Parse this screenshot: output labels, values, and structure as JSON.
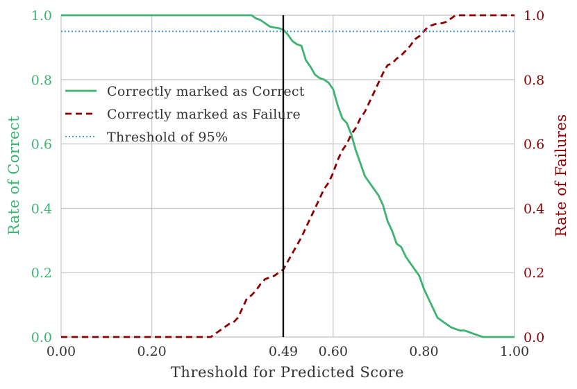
{
  "chart_data": {
    "type": "line",
    "xlabel": "Threshold for Predicted Score",
    "ylabel_left": "Rate of Correct",
    "ylabel_right": "Rate of Failures",
    "xlim": [
      0,
      1
    ],
    "ylim_left": [
      0,
      1
    ],
    "ylim_right": [
      0,
      1
    ],
    "x_ticks": [
      0.0,
      0.2,
      0.49,
      0.6,
      0.8,
      1.0
    ],
    "x_tick_labels": [
      "0.00",
      "0.20",
      "0.49",
      "0.60",
      "0.80",
      "1.00"
    ],
    "y_ticks": [
      0.0,
      0.2,
      0.4,
      0.6,
      0.8,
      1.0
    ],
    "y_left_tick_labels": [
      "0.0",
      "0.2",
      "0.4",
      "0.6",
      "0.8",
      "1.0"
    ],
    "y_right_tick_labels": [
      "0.0",
      "0.2",
      "0.4",
      "0.6",
      "0.8",
      "1.0"
    ],
    "grid": true,
    "legend_position": "upper-left",
    "vertical_line": {
      "x": 0.49,
      "color": "#000000"
    },
    "series": [
      {
        "name": "Correctly marked as Correct",
        "axis": "left",
        "style": "solid",
        "color": "#3cb371",
        "x": [
          0.0,
          0.42,
          0.43,
          0.44,
          0.45,
          0.46,
          0.47,
          0.48,
          0.49,
          0.5,
          0.51,
          0.52,
          0.53,
          0.54,
          0.55,
          0.56,
          0.57,
          0.58,
          0.59,
          0.6,
          0.61,
          0.62,
          0.63,
          0.64,
          0.65,
          0.66,
          0.67,
          0.68,
          0.69,
          0.7,
          0.71,
          0.72,
          0.73,
          0.74,
          0.75,
          0.76,
          0.77,
          0.78,
          0.79,
          0.8,
          0.81,
          0.82,
          0.83,
          0.84,
          0.85,
          0.86,
          0.87,
          0.88,
          0.89,
          0.9,
          0.91,
          0.92,
          0.93,
          0.94,
          1.0
        ],
        "y": [
          1.0,
          1.0,
          0.99,
          0.985,
          0.975,
          0.965,
          0.962,
          0.96,
          0.955,
          0.94,
          0.92,
          0.91,
          0.905,
          0.86,
          0.84,
          0.815,
          0.805,
          0.8,
          0.79,
          0.77,
          0.72,
          0.68,
          0.665,
          0.63,
          0.58,
          0.54,
          0.5,
          0.48,
          0.46,
          0.44,
          0.41,
          0.36,
          0.33,
          0.29,
          0.28,
          0.25,
          0.23,
          0.21,
          0.19,
          0.15,
          0.12,
          0.09,
          0.06,
          0.05,
          0.04,
          0.03,
          0.025,
          0.02,
          0.02,
          0.015,
          0.01,
          0.005,
          0.0,
          0.0,
          0.0
        ]
      },
      {
        "name": "Correctly marked as Failure",
        "axis": "right",
        "style": "dashed",
        "color": "#8b0000",
        "x": [
          0.0,
          0.33,
          0.34,
          0.35,
          0.36,
          0.37,
          0.38,
          0.39,
          0.4,
          0.41,
          0.42,
          0.43,
          0.44,
          0.45,
          0.46,
          0.47,
          0.48,
          0.49,
          0.5,
          0.51,
          0.52,
          0.53,
          0.54,
          0.55,
          0.56,
          0.57,
          0.58,
          0.59,
          0.6,
          0.61,
          0.62,
          0.63,
          0.64,
          0.65,
          0.66,
          0.67,
          0.68,
          0.69,
          0.7,
          0.71,
          0.72,
          0.73,
          0.74,
          0.75,
          0.76,
          0.77,
          0.78,
          0.79,
          0.8,
          0.81,
          0.82,
          0.83,
          0.84,
          0.85,
          0.86,
          0.87,
          0.88,
          0.89,
          0.9,
          1.0
        ],
        "y": [
          0.0,
          0.0,
          0.01,
          0.02,
          0.03,
          0.04,
          0.045,
          0.06,
          0.09,
          0.12,
          0.13,
          0.145,
          0.165,
          0.18,
          0.185,
          0.19,
          0.2,
          0.21,
          0.235,
          0.26,
          0.285,
          0.31,
          0.34,
          0.37,
          0.4,
          0.43,
          0.46,
          0.48,
          0.51,
          0.55,
          0.58,
          0.6,
          0.63,
          0.65,
          0.68,
          0.7,
          0.73,
          0.76,
          0.79,
          0.82,
          0.845,
          0.85,
          0.865,
          0.875,
          0.89,
          0.905,
          0.925,
          0.935,
          0.95,
          0.965,
          0.97,
          0.975,
          0.975,
          0.98,
          0.99,
          1.0,
          1.0,
          1.0,
          1.0,
          1.0
        ]
      },
      {
        "name": "Threshold of 95%",
        "axis": "left",
        "style": "dotted",
        "color": "#3d9be9",
        "x": [
          0.0,
          1.0
        ],
        "y": [
          0.95,
          0.95
        ]
      }
    ]
  }
}
